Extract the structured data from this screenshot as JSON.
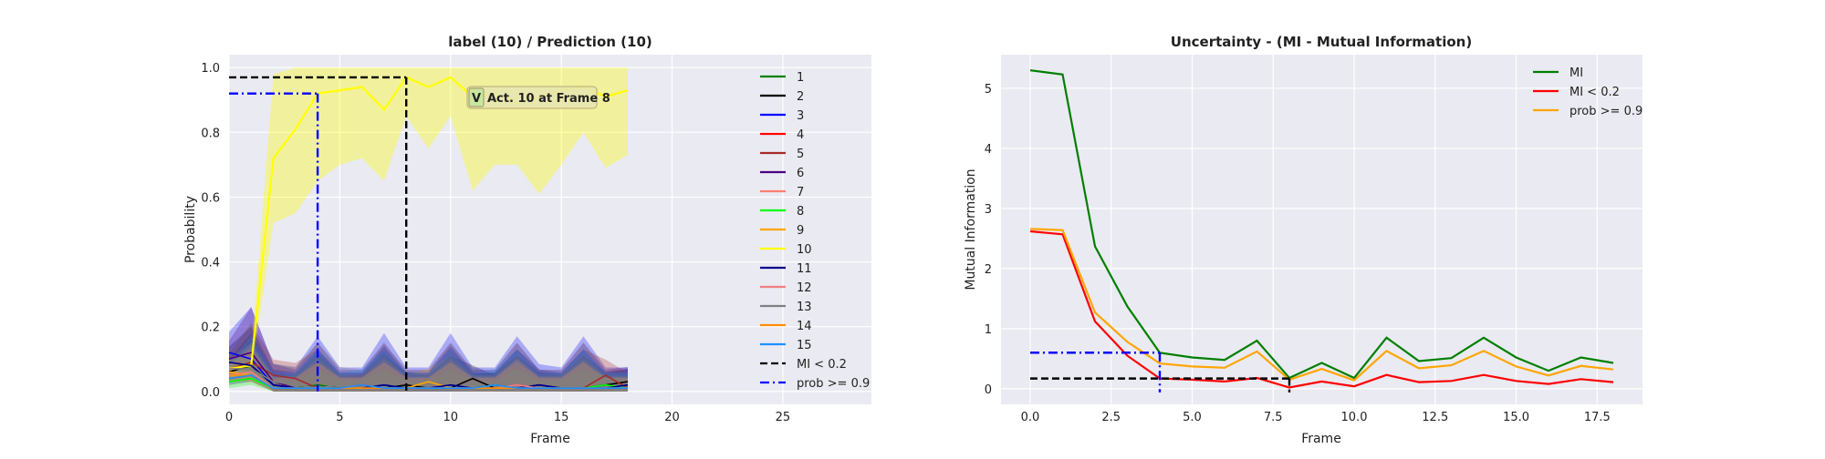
{
  "chart_data": [
    {
      "type": "line",
      "title": "label (10) / Prediction (10)",
      "xlabel": "Frame",
      "ylabel": "Probability",
      "xlim": [
        0,
        29
      ],
      "ylim": [
        -0.04,
        1.04
      ],
      "xticks": [
        "0",
        "5",
        "10",
        "15",
        "20",
        "25"
      ],
      "xtick_values": [
        0,
        5,
        10,
        15,
        20,
        25
      ],
      "yticks": [
        "0.0",
        "0.2",
        "0.4",
        "0.6",
        "0.8",
        "1.0"
      ],
      "ytick_values": [
        0,
        0.2,
        0.4,
        0.6,
        0.8,
        1.0
      ],
      "grid": true,
      "legend_position": "right",
      "x": [
        0,
        1,
        2,
        3,
        4,
        5,
        6,
        7,
        8,
        9,
        10,
        11,
        12,
        13,
        14,
        15,
        16,
        17,
        18
      ],
      "series": [
        {
          "name": "1",
          "color": "#008000",
          "values": [
            0.05,
            0.06,
            0.01,
            0.01,
            0.02,
            0.01,
            0.01,
            0.02,
            0.01,
            0.01,
            0.01,
            0.01,
            0.02,
            0.01,
            0.01,
            0.01,
            0.01,
            0.01,
            0.01
          ],
          "band": [
            0.02,
            0.1
          ]
        },
        {
          "name": "2",
          "color": "#000000",
          "values": [
            0.06,
            0.08,
            0.02,
            0.01,
            0.01,
            0.01,
            0.01,
            0.01,
            0.02,
            0.01,
            0.01,
            0.04,
            0.01,
            0.01,
            0.02,
            0.01,
            0.01,
            0.02,
            0.03
          ],
          "band": [
            0.02,
            0.1
          ]
        },
        {
          "name": "3",
          "color": "#0000ff",
          "values": [
            0.12,
            0.1,
            0.02,
            0.01,
            0.01,
            0.01,
            0.01,
            0.02,
            0.01,
            0.01,
            0.02,
            0.01,
            0.01,
            0.01,
            0.02,
            0.01,
            0.01,
            0.01,
            0.01
          ],
          "band": [
            0.02,
            0.16
          ]
        },
        {
          "name": "4",
          "color": "#ff0000",
          "values": [
            0.04,
            0.05,
            0.01,
            0.01,
            0.01,
            0.01,
            0.02,
            0.01,
            0.01,
            0.01,
            0.01,
            0.01,
            0.01,
            0.02,
            0.01,
            0.01,
            0.01,
            0.01,
            0.01
          ],
          "band": [
            0.02,
            0.08
          ]
        },
        {
          "name": "5",
          "color": "#a52a2a",
          "values": [
            0.07,
            0.09,
            0.05,
            0.04,
            0.01,
            0.01,
            0.01,
            0.01,
            0.01,
            0.01,
            0.01,
            0.01,
            0.01,
            0.01,
            0.01,
            0.01,
            0.01,
            0.05,
            0.01
          ],
          "band": [
            0.02,
            0.12
          ]
        },
        {
          "name": "6",
          "color": "#4b0082",
          "values": [
            0.1,
            0.12,
            0.03,
            0.01,
            0.01,
            0.01,
            0.01,
            0.01,
            0.01,
            0.01,
            0.01,
            0.01,
            0.01,
            0.01,
            0.01,
            0.01,
            0.01,
            0.01,
            0.02
          ],
          "band": [
            0.02,
            0.14
          ]
        },
        {
          "name": "7",
          "color": "#fa8072",
          "values": [
            0.05,
            0.06,
            0.01,
            0.01,
            0.01,
            0.01,
            0.01,
            0.01,
            0.01,
            0.01,
            0.01,
            0.01,
            0.01,
            0.01,
            0.01,
            0.01,
            0.01,
            0.01,
            0.01
          ],
          "band": [
            0.02,
            0.09
          ]
        },
        {
          "name": "8",
          "color": "#00ff00",
          "values": [
            0.03,
            0.04,
            0.01,
            0.01,
            0.01,
            0.01,
            0.01,
            0.01,
            0.01,
            0.01,
            0.01,
            0.01,
            0.01,
            0.01,
            0.01,
            0.01,
            0.01,
            0.02,
            0.01
          ],
          "band": [
            0.02,
            0.06
          ]
        },
        {
          "name": "9",
          "color": "#ffa500",
          "values": [
            0.06,
            0.05,
            0.01,
            0.01,
            0.01,
            0.01,
            0.01,
            0.01,
            0.01,
            0.03,
            0.01,
            0.01,
            0.01,
            0.01,
            0.01,
            0.01,
            0.01,
            0.01,
            0.01
          ],
          "band": [
            0.02,
            0.1
          ]
        },
        {
          "name": "10",
          "color": "#ffff00",
          "values": [
            0.07,
            0.08,
            0.72,
            0.81,
            0.92,
            0.93,
            0.94,
            0.87,
            0.97,
            0.94,
            0.97,
            0.91,
            0.92,
            0.89,
            0.91,
            0.93,
            0.94,
            0.91,
            0.93
          ],
          "band_lower": [
            0.04,
            0.05,
            0.52,
            0.55,
            0.65,
            0.7,
            0.72,
            0.65,
            0.85,
            0.75,
            0.85,
            0.62,
            0.7,
            0.7,
            0.61,
            0.7,
            0.8,
            0.69,
            0.73
          ],
          "band_upper": [
            0.1,
            0.12,
            0.98,
            1.0,
            1.0,
            1.0,
            1.0,
            1.0,
            1.0,
            1.0,
            1.0,
            1.0,
            1.0,
            1.0,
            1.0,
            1.0,
            1.0,
            1.0,
            1.0
          ]
        },
        {
          "name": "11",
          "color": "#00008b",
          "values": [
            0.09,
            0.08,
            0.02,
            0.01,
            0.01,
            0.01,
            0.01,
            0.02,
            0.01,
            0.01,
            0.02,
            0.01,
            0.01,
            0.01,
            0.02,
            0.01,
            0.01,
            0.01,
            0.02
          ],
          "band": [
            0.02,
            0.12
          ]
        },
        {
          "name": "12",
          "color": "#f08080",
          "values": [
            0.05,
            0.06,
            0.01,
            0.01,
            0.01,
            0.01,
            0.01,
            0.01,
            0.01,
            0.01,
            0.01,
            0.01,
            0.01,
            0.02,
            0.01,
            0.01,
            0.01,
            0.01,
            0.01
          ],
          "band": [
            0.02,
            0.08
          ]
        },
        {
          "name": "13",
          "color": "#808080",
          "values": [
            0.07,
            0.07,
            0.03,
            0.02,
            0.01,
            0.02,
            0.01,
            0.01,
            0.01,
            0.01,
            0.01,
            0.01,
            0.01,
            0.01,
            0.01,
            0.01,
            0.01,
            0.01,
            0.01
          ],
          "band": [
            0.02,
            0.14
          ]
        },
        {
          "name": "14",
          "color": "#ff8c00",
          "values": [
            0.05,
            0.05,
            0.01,
            0.01,
            0.01,
            0.01,
            0.01,
            0.01,
            0.01,
            0.01,
            0.01,
            0.01,
            0.01,
            0.01,
            0.01,
            0.01,
            0.01,
            0.01,
            0.01
          ],
          "band": [
            0.02,
            0.08
          ]
        },
        {
          "name": "15",
          "color": "#1e90ff",
          "values": [
            0.04,
            0.05,
            0.01,
            0.01,
            0.01,
            0.01,
            0.02,
            0.01,
            0.01,
            0.01,
            0.01,
            0.01,
            0.02,
            0.01,
            0.01,
            0.01,
            0.01,
            0.01,
            0.01
          ],
          "band": [
            0.02,
            0.12
          ]
        }
      ],
      "threshold_lines": [
        {
          "name": "MI < 0.2",
          "color": "#000000",
          "style": "dashed",
          "level": 0.97,
          "x_end": 8
        },
        {
          "name": "prob >= 0.9",
          "color": "#0000ff",
          "style": "dashdot",
          "level": 0.92,
          "x_end": 4
        }
      ],
      "annotation": {
        "badge": "V",
        "text": "Act. 10 at Frame 8",
        "x": 11,
        "y": 0.92
      }
    },
    {
      "type": "line",
      "title": "Uncertainty - (MI - Mutual Information)",
      "xlabel": "Frame",
      "ylabel": "Mutual Information",
      "xlim": [
        -0.9,
        18.9
      ],
      "ylim": [
        -0.26,
        5.56
      ],
      "xticks": [
        "0.0",
        "2.5",
        "5.0",
        "7.5",
        "10.0",
        "12.5",
        "15.0",
        "17.5"
      ],
      "xtick_values": [
        0,
        2.5,
        5,
        7.5,
        10,
        12.5,
        15,
        17.5
      ],
      "yticks": [
        "0",
        "1",
        "2",
        "3",
        "4",
        "5"
      ],
      "ytick_values": [
        0,
        1,
        2,
        3,
        4,
        5
      ],
      "grid": true,
      "legend_position": "top-right",
      "x": [
        0,
        1,
        2,
        3,
        4,
        5,
        6,
        7,
        8,
        9,
        10,
        11,
        12,
        13,
        14,
        15,
        16,
        17,
        18
      ],
      "series": [
        {
          "name": "MI",
          "color": "#008000",
          "values": [
            5.3,
            5.23,
            2.37,
            1.37,
            0.6,
            0.52,
            0.48,
            0.8,
            0.18,
            0.43,
            0.18,
            0.85,
            0.46,
            0.51,
            0.85,
            0.52,
            0.3,
            0.52,
            0.43
          ]
        },
        {
          "name": "MI < 0.2",
          "color": "#ff0000",
          "values": [
            2.62,
            2.57,
            1.12,
            0.55,
            0.17,
            0.15,
            0.12,
            0.18,
            0.02,
            0.12,
            0.04,
            0.23,
            0.11,
            0.13,
            0.23,
            0.13,
            0.08,
            0.16,
            0.11
          ]
        },
        {
          "name": "prob >= 0.9",
          "color": "#ffa500",
          "values": [
            2.66,
            2.64,
            1.27,
            0.78,
            0.42,
            0.37,
            0.35,
            0.62,
            0.15,
            0.33,
            0.14,
            0.63,
            0.34,
            0.39,
            0.63,
            0.37,
            0.22,
            0.38,
            0.32
          ]
        }
      ],
      "threshold_lines": [
        {
          "color": "#000000",
          "style": "dashed",
          "level": 0.17,
          "x_end": 8
        },
        {
          "color": "#0000ff",
          "style": "dashdot",
          "level": 0.6,
          "x_end": 4
        }
      ]
    }
  ]
}
